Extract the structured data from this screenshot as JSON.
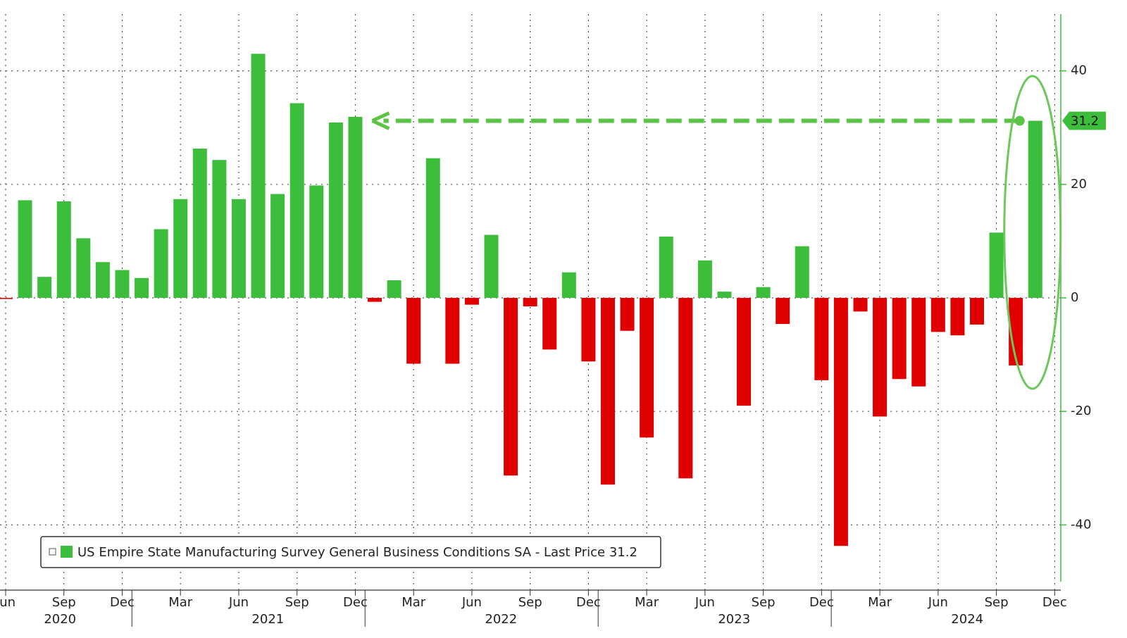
{
  "chart_data": {
    "type": "bar",
    "categories": [
      "Jun",
      null,
      null,
      "Sep",
      null,
      null,
      "Dec",
      null,
      null,
      "Mar",
      null,
      null,
      "Jun",
      null,
      null,
      "Sep",
      null,
      null,
      "Dec",
      null,
      null,
      "Mar",
      null,
      null,
      "Jun",
      null,
      null,
      "Sep",
      null,
      null,
      "Dec",
      null,
      null,
      "Mar",
      null,
      null,
      "Jun",
      null,
      null,
      "Sep",
      null,
      null,
      "Dec",
      null,
      null,
      "Mar",
      null,
      null,
      "Jun",
      null,
      null,
      "Sep",
      null,
      null,
      "Dec"
    ],
    "years": [
      "2020",
      "2021",
      "2022",
      "2023",
      "2024"
    ],
    "series": [
      {
        "name": "US Empire State Manufacturing Survey General Business Conditions SA - Last Price 31.2",
        "color": "#3cbe3c",
        "negative_color": "#e00000",
        "values": [
          -0.2,
          17.2,
          3.7,
          17,
          10.5,
          6.3,
          4.9,
          3.5,
          12.1,
          17.4,
          26.3,
          24.3,
          17.4,
          43,
          18.3,
          34.3,
          19.8,
          30.9,
          31.9,
          -0.7,
          3.1,
          -11.6,
          24.6,
          -11.6,
          -1.2,
          11.1,
          -31.3,
          -1.5,
          -9.1,
          4.5,
          -11.2,
          -32.9,
          -5.8,
          -24.6,
          10.8,
          -31.8,
          6.6,
          1.1,
          -19,
          1.9,
          -4.6,
          9.1,
          -14.5,
          -43.7,
          -2.4,
          -20.9,
          -14.3,
          -15.6,
          -6,
          -6.6,
          -4.7,
          11.5,
          -11.9,
          31.2,
          null
        ]
      }
    ],
    "last_price": 31.2,
    "ylim": [
      -50,
      50
    ],
    "yticks": [
      -40,
      -20,
      0,
      20,
      40
    ],
    "grid": true
  }
}
